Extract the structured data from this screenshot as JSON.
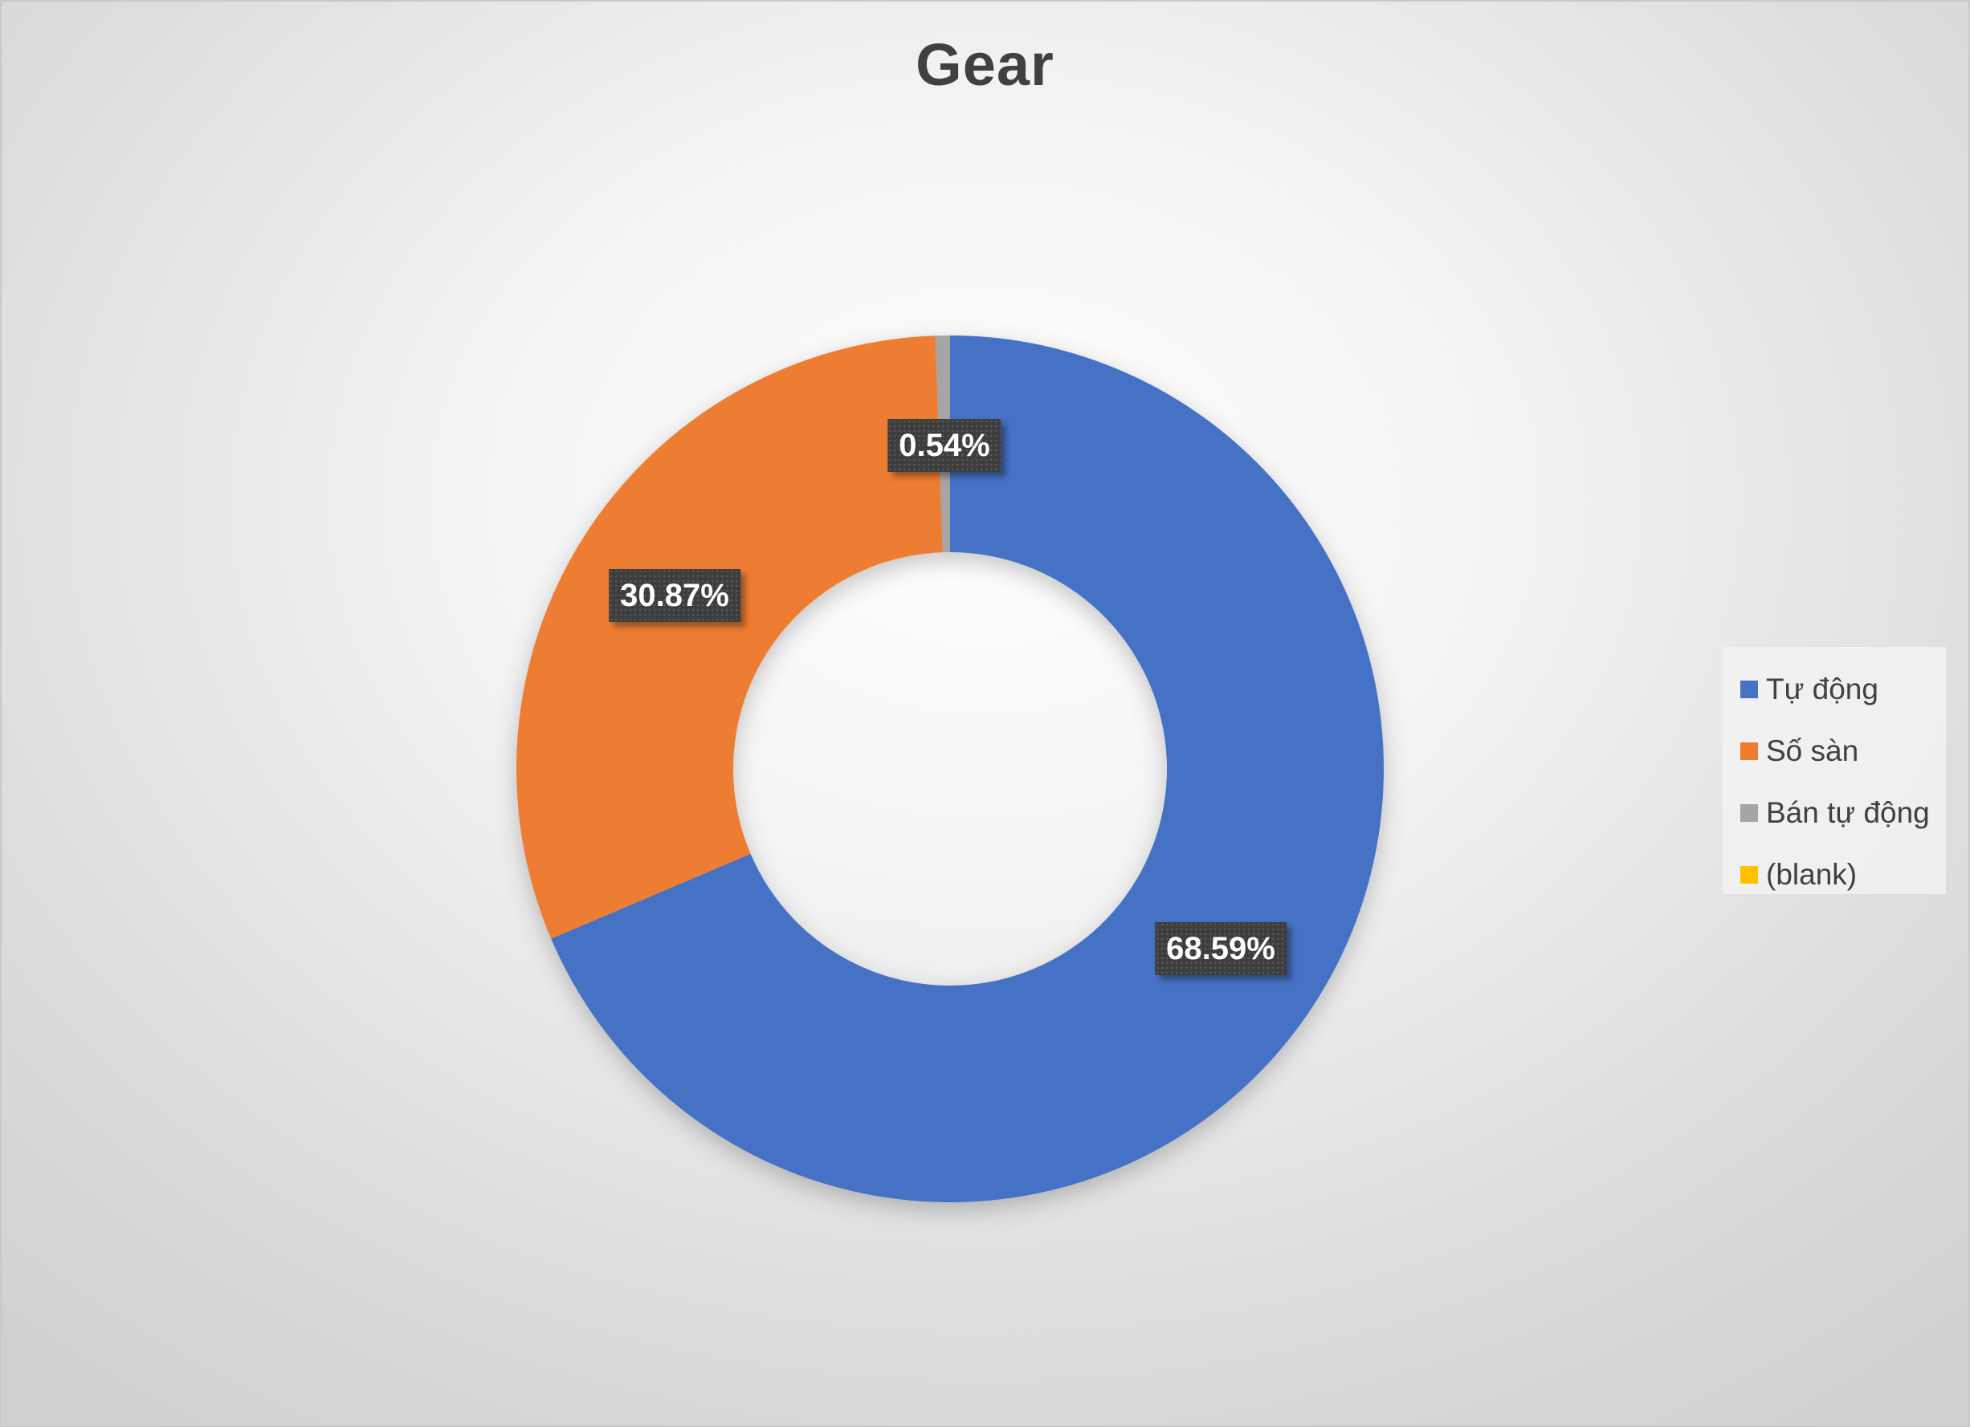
{
  "chart_data": {
    "type": "pie",
    "variant": "donut",
    "title": "Gear",
    "categories": [
      "Tự động",
      "Số sàn",
      "Bán tự động",
      "(blank)"
    ],
    "values": [
      68.59,
      30.87,
      0.54,
      0
    ],
    "labels": [
      "68.59%",
      "30.87%",
      "0.54%",
      ""
    ],
    "colors": [
      "#4472c4",
      "#ed7d31",
      "#a5a5a5",
      "#ffc000"
    ],
    "legend_position": "right",
    "unit": "%"
  }
}
